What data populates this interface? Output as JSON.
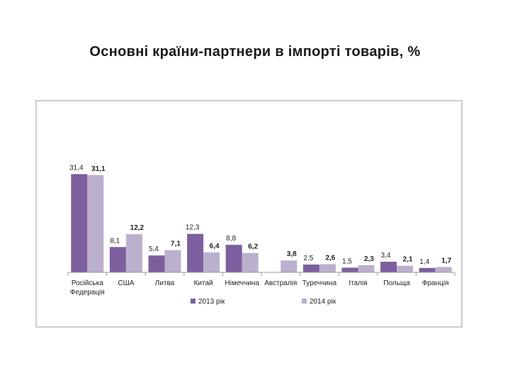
{
  "title": "Основні країни-партнери в імпорті товарів, %",
  "colors": {
    "series1": "#7d5fa0",
    "series2": "#bbb0cd",
    "axis": "#999999"
  },
  "chart_data": {
    "type": "bar",
    "title": "Основні країни-партнери в імпорті товарів, %",
    "categories": [
      "Російська Федерація",
      "США",
      "Литва",
      "Китай",
      "Німеччина",
      "Австралія",
      "Туреччина",
      "Італія",
      "Польща",
      "Франція"
    ],
    "category_lines": [
      [
        "Російська",
        "Федерація"
      ],
      [
        "США"
      ],
      [
        "Литва"
      ],
      [
        "Китай"
      ],
      [
        "Німеччина"
      ],
      [
        "Австралія"
      ],
      [
        "Туреччина"
      ],
      [
        "Італія"
      ],
      [
        "Польща"
      ],
      [
        "Франція"
      ]
    ],
    "series": [
      {
        "name": "2013 рік",
        "values": [
          31.4,
          8.1,
          5.4,
          12.3,
          8.8,
          null,
          2.5,
          1.5,
          3.4,
          1.4
        ],
        "labels": [
          "31,4",
          "8,1",
          "5,4",
          "12,3",
          "8,8",
          "",
          "2,5",
          "1,5",
          "3,4",
          "1,4"
        ]
      },
      {
        "name": "2014 рік",
        "values": [
          31.1,
          12.2,
          7.1,
          6.4,
          6.2,
          3.8,
          2.6,
          2.3,
          2.1,
          1.7
        ],
        "labels": [
          "31,1",
          "12,2",
          "7,1",
          "6,4",
          "6,2",
          "3,8",
          "2,6",
          "2,3",
          "2,1",
          "1,7"
        ]
      }
    ],
    "ylim": [
      0,
      34
    ],
    "grid": false,
    "legend_position": "bottom"
  }
}
